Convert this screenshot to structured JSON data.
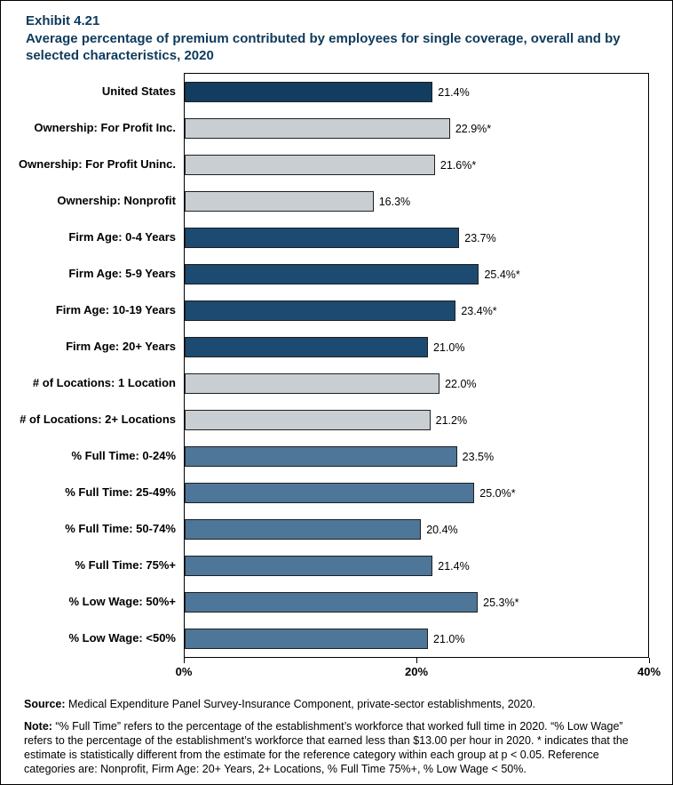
{
  "exhibit": {
    "number": "Exhibit 4.21",
    "title": "Average percentage of premium contributed by employees for single coverage, overall and by selected characteristics, 2020"
  },
  "chart_data": {
    "type": "bar",
    "orientation": "horizontal",
    "title": "Average percentage of premium contributed by employees for single coverage, overall and by selected characteristics, 2020",
    "categories": [
      "United States",
      "Ownership: For Profit Inc.",
      "Ownership: For Profit Uninc.",
      "Ownership: Nonprofit",
      "Firm Age: 0-4 Years",
      "Firm Age: 5-9 Years",
      "Firm Age: 10-19 Years",
      "Firm Age: 20+ Years",
      "# of Locations: 1 Location",
      "# of Locations: 2+ Locations",
      "% Full Time: 0-24%",
      "% Full Time: 25-49%",
      "% Full Time: 50-74%",
      "% Full Time: 75%+",
      "% Low Wage: 50%+",
      "% Low Wage: <50%"
    ],
    "values": [
      21.4,
      22.9,
      21.6,
      16.3,
      23.7,
      25.4,
      23.4,
      21.0,
      22.0,
      21.2,
      23.5,
      25.0,
      20.4,
      21.4,
      25.3,
      21.0
    ],
    "value_labels": [
      "21.4%",
      "22.9%*",
      "21.6%*",
      "16.3%",
      "23.7%",
      "25.4%*",
      "23.4%*",
      "21.0%",
      "22.0%",
      "21.2%",
      "23.5%",
      "25.0%*",
      "20.4%",
      "21.4%",
      "25.3%*",
      "21.0%"
    ],
    "bar_colors": [
      "#123d60",
      "#c9ced3",
      "#c9ced3",
      "#c9ced3",
      "#1c4a71",
      "#1c4a71",
      "#1c4a71",
      "#1c4a71",
      "#c9ced3",
      "#c9ced3",
      "#4d7699",
      "#4d7699",
      "#4d7699",
      "#4d7699",
      "#4d7699",
      "#4d7699"
    ],
    "xlim": [
      0,
      40
    ],
    "x_ticks": [
      0,
      20,
      40
    ],
    "x_tick_labels": [
      "0%",
      "20%",
      "40%"
    ],
    "grid": false,
    "legend": false,
    "colors": {
      "navy_dark": "#123d60",
      "navy": "#1c4a71",
      "gray": "#c9ced3",
      "steel_blue": "#4d7699",
      "title_text": "#0e3a5c"
    }
  },
  "footer": {
    "source_label": "Source:",
    "source_text": " Medical Expenditure Panel Survey-Insurance Component, private-sector establishments, 2020.",
    "note_label": "Note:",
    "note_text": " “% Full Time” refers to the percentage of the establishment’s workforce that worked full time in 2020. “% Low Wage” refers to the percentage of the establishment’s workforce that earned less than $13.00 per hour in 2020. * indicates that the estimate is statistically different from the estimate for the reference category within each group at p < 0.05.  Reference categories are: Nonprofit, Firm Age: 20+ Years, 2+ Locations, % Full Time 75%+, % Low Wage < 50%."
  }
}
